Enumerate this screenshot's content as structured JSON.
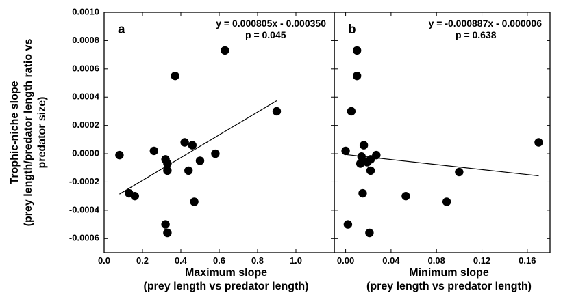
{
  "colors": {
    "background": "#ffffff",
    "ink": "#000000"
  },
  "ylabel_lines": [
    "Trophic-niche slope",
    "(prey length/predator length ratio vs",
    "predator size)"
  ],
  "chart_data": [
    {
      "type": "scatter",
      "panel_label": "a",
      "equation": "y = 0.000805x - 0.000350",
      "p_value": "p = 0.045",
      "xlabel_lines": [
        "Maximum slope",
        "(prey length vs  predator length)"
      ],
      "xlim": [
        0,
        1.2
      ],
      "ylim": [
        -0.0007,
        0.001
      ],
      "x_ticks": [
        "0.0",
        "0.2",
        "0.4",
        "0.6",
        "0.8",
        "1.0"
      ],
      "x_tick_values": [
        0,
        0.2,
        0.4,
        0.6,
        0.8,
        1.0
      ],
      "y_ticks": [
        "0.0010",
        "0.0008",
        "0.0006",
        "0.0004",
        "0.0002",
        "0.0000",
        "-0.0002",
        "-0.0004",
        "-0.0006"
      ],
      "y_tick_values": [
        0.001,
        0.0008,
        0.0006,
        0.0004,
        0.0002,
        0,
        -0.0002,
        -0.0004,
        -0.0006
      ],
      "regression": {
        "slope": 0.000805,
        "intercept": -0.00035,
        "x_range": [
          0.08,
          0.9
        ]
      },
      "points": [
        {
          "x": 0.08,
          "y": -1e-05
        },
        {
          "x": 0.13,
          "y": -0.00028
        },
        {
          "x": 0.16,
          "y": -0.0003
        },
        {
          "x": 0.26,
          "y": 2e-05
        },
        {
          "x": 0.32,
          "y": -4e-05
        },
        {
          "x": 0.32,
          "y": -0.0005
        },
        {
          "x": 0.33,
          "y": -7e-05
        },
        {
          "x": 0.33,
          "y": -0.00012
        },
        {
          "x": 0.33,
          "y": -0.00056
        },
        {
          "x": 0.37,
          "y": 0.00055
        },
        {
          "x": 0.42,
          "y": 8e-05
        },
        {
          "x": 0.44,
          "y": -0.00012
        },
        {
          "x": 0.46,
          "y": 6e-05
        },
        {
          "x": 0.47,
          "y": -0.00034
        },
        {
          "x": 0.5,
          "y": -5e-05
        },
        {
          "x": 0.58,
          "y": 0.0
        },
        {
          "x": 0.63,
          "y": 0.00073
        },
        {
          "x": 0.9,
          "y": 0.0003
        }
      ]
    },
    {
      "type": "scatter",
      "panel_label": "b",
      "equation": "y = -0.000887x - 0.000006",
      "p_value": "p = 0.638",
      "xlabel_lines": [
        "Minimum slope",
        "(prey length vs  predator length)"
      ],
      "xlim": [
        -0.01,
        0.18
      ],
      "ylim": [
        -0.0007,
        0.001
      ],
      "x_ticks": [
        "0.00",
        "0.04",
        "0.08",
        "0.12",
        "0.16"
      ],
      "x_tick_values": [
        0,
        0.04,
        0.08,
        0.12,
        0.16
      ],
      "y_tick_values": [
        0.001,
        0.0008,
        0.0006,
        0.0004,
        0.0002,
        0,
        -0.0002,
        -0.0004,
        -0.0006
      ],
      "regression": {
        "slope": -0.000887,
        "intercept": -6e-06,
        "x_range": [
          0.0,
          0.17
        ]
      },
      "points": [
        {
          "x": 0.0,
          "y": 2e-05
        },
        {
          "x": 0.002,
          "y": -0.0005
        },
        {
          "x": 0.005,
          "y": 0.0003
        },
        {
          "x": 0.01,
          "y": 0.00073
        },
        {
          "x": 0.01,
          "y": 0.00055
        },
        {
          "x": 0.013,
          "y": -7e-05
        },
        {
          "x": 0.014,
          "y": -2e-05
        },
        {
          "x": 0.015,
          "y": -0.00028
        },
        {
          "x": 0.016,
          "y": 6e-05
        },
        {
          "x": 0.019,
          "y": -6e-05
        },
        {
          "x": 0.021,
          "y": -0.00056
        },
        {
          "x": 0.022,
          "y": -4e-05
        },
        {
          "x": 0.022,
          "y": -0.00012
        },
        {
          "x": 0.027,
          "y": -1e-05
        },
        {
          "x": 0.053,
          "y": -0.0003
        },
        {
          "x": 0.089,
          "y": -0.00034
        },
        {
          "x": 0.1,
          "y": -0.00013
        },
        {
          "x": 0.17,
          "y": 8e-05
        }
      ]
    }
  ]
}
